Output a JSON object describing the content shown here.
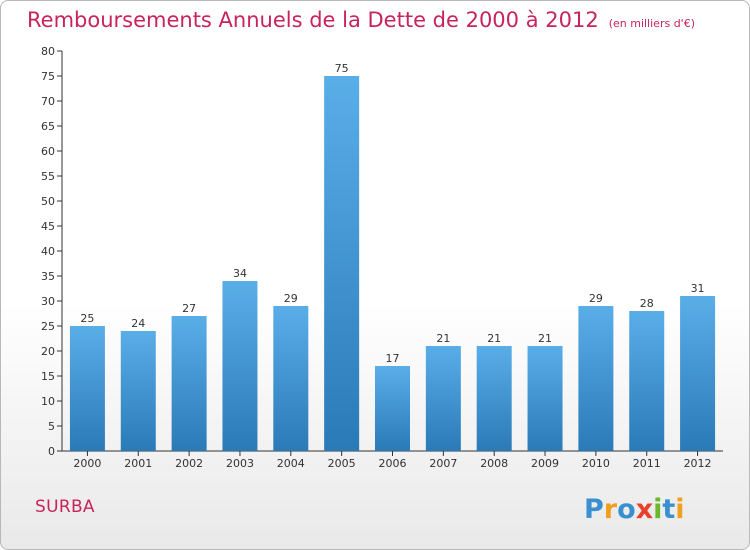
{
  "title": "Remboursements Annuels de la Dette de 2000 à 2012",
  "unit_note": "(en milliers d'€)",
  "commune": "SURBA",
  "logo_text": "Proxiti",
  "colors": {
    "title": "#c8245a",
    "bar_top": "#5aaee8",
    "bar_bottom": "#2a7ab8"
  },
  "chart_data": {
    "type": "bar",
    "categories": [
      "2000",
      "2001",
      "2002",
      "2003",
      "2004",
      "2005",
      "2006",
      "2007",
      "2008",
      "2009",
      "2010",
      "2011",
      "2012"
    ],
    "values": [
      25,
      24,
      27,
      34,
      29,
      75,
      17,
      21,
      21,
      21,
      29,
      28,
      31
    ],
    "ylim": [
      0,
      80
    ],
    "yticks": [
      0,
      5,
      10,
      15,
      20,
      25,
      30,
      35,
      40,
      45,
      50,
      55,
      60,
      65,
      70,
      75,
      80
    ],
    "grid": false,
    "data_labels": true
  }
}
